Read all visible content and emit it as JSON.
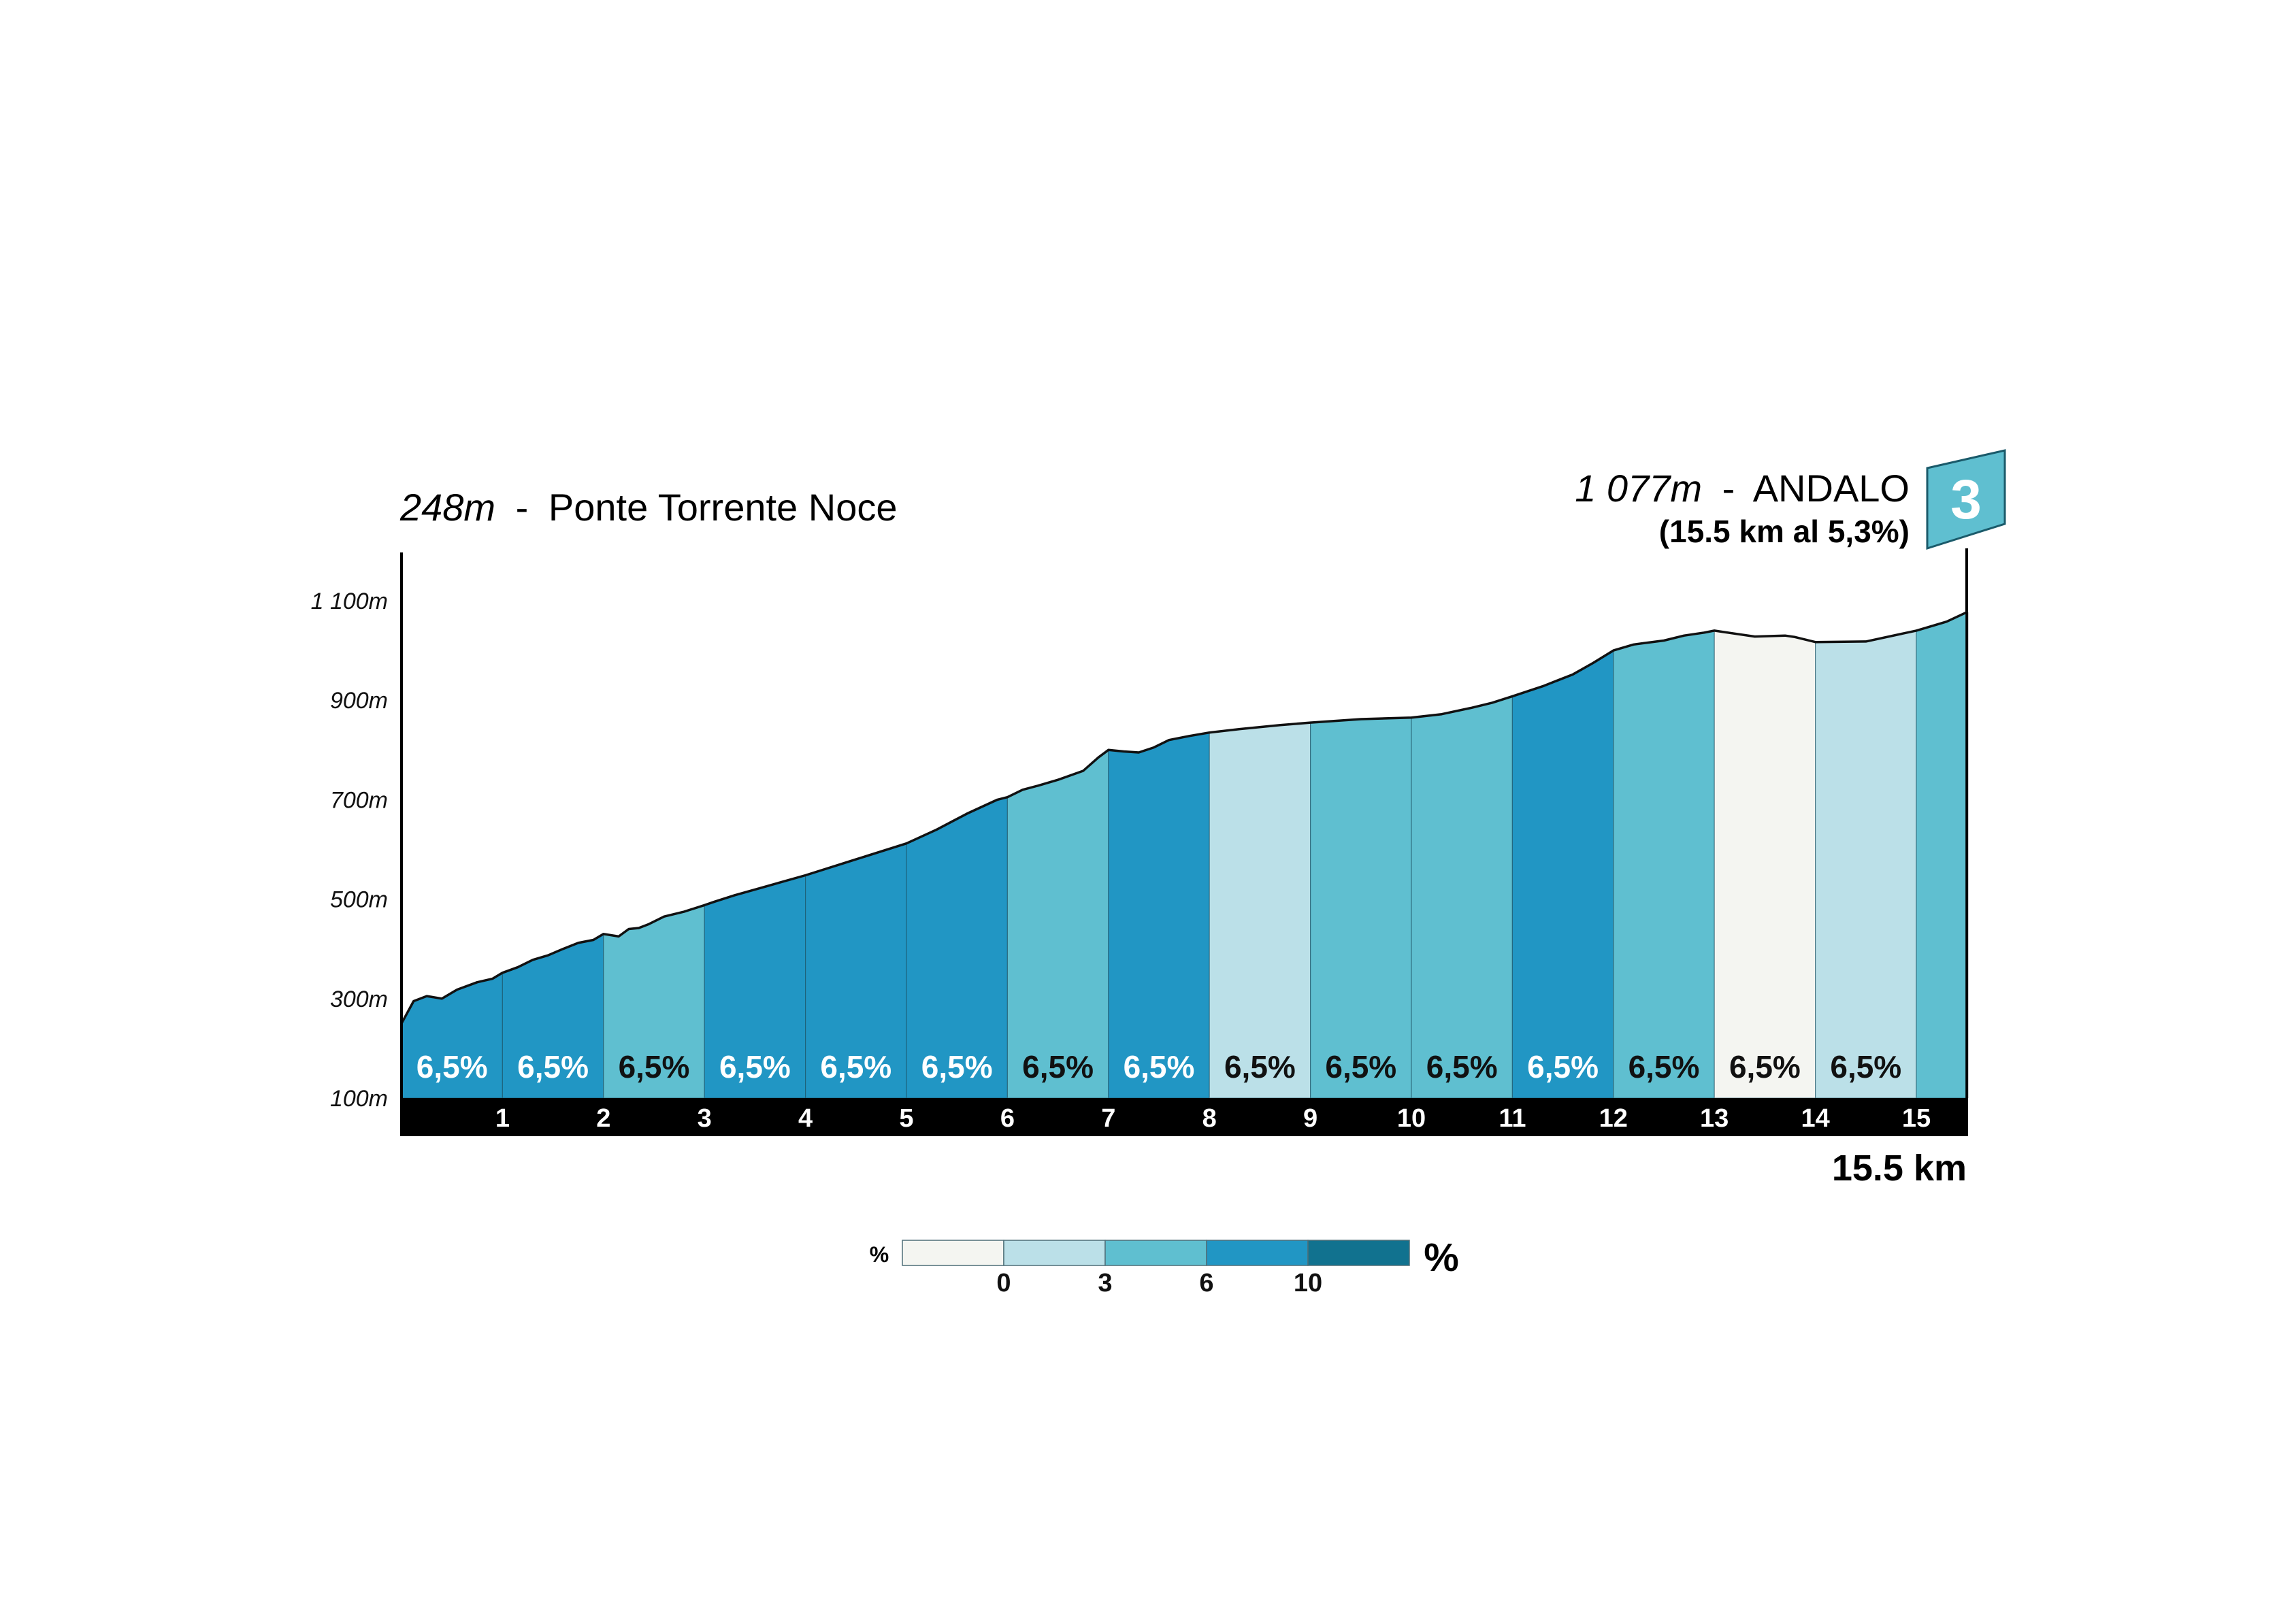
{
  "start": {
    "elevation": "248m",
    "separator": "-",
    "name": "Ponte Torrente Noce"
  },
  "finish": {
    "elevation": "1 077m",
    "separator": "-",
    "name": "ANDALO",
    "summary": "(15.5 km al 5,3%)",
    "category": "3"
  },
  "distance_label": "15.5 km",
  "legend": {
    "left_symbol": "%",
    "right_symbol": "%",
    "ticks": [
      "0",
      "3",
      "6",
      "10"
    ],
    "colors": [
      "#f4f5f1",
      "#bbe0e8",
      "#5fbfd0",
      "#2196c4",
      "#11728f"
    ]
  },
  "colors": {
    "axis": "#000000",
    "profile_outline": "#111111",
    "km_bar": "#000000",
    "flag": "#5fbfd0"
  },
  "chart_data": {
    "type": "area",
    "title": "",
    "xlabel": "15.5 km",
    "ylabel": "",
    "xlim": [
      0,
      15.5
    ],
    "ylim": [
      100,
      1200
    ],
    "y_ticks": [
      {
        "value": 100,
        "label": "100m"
      },
      {
        "value": 300,
        "label": "300m"
      },
      {
        "value": 500,
        "label": "500m"
      },
      {
        "value": 700,
        "label": "700m"
      },
      {
        "value": 900,
        "label": "900m"
      },
      {
        "value": 1100,
        "label": "1 100m"
      }
    ],
    "x_ticks": [
      1,
      2,
      3,
      4,
      5,
      6,
      7,
      8,
      9,
      10,
      11,
      12,
      13,
      14,
      15
    ],
    "profile": {
      "x": [
        0,
        0.12,
        0.25,
        0.4,
        0.55,
        0.75,
        0.9,
        1.0,
        1.15,
        1.3,
        1.45,
        1.6,
        1.75,
        1.9,
        2.0,
        2.15,
        2.25,
        2.35,
        2.45,
        2.6,
        2.8,
        3.0,
        3.1,
        3.3,
        3.6,
        4.0,
        4.5,
        5.0,
        5.3,
        5.6,
        5.9,
        6.0,
        6.15,
        6.3,
        6.5,
        6.75,
        6.9,
        7.0,
        7.15,
        7.3,
        7.45,
        7.6,
        7.8,
        8.0,
        8.3,
        8.7,
        9.0,
        9.5,
        10.0,
        10.3,
        10.6,
        10.8,
        11.0,
        11.3,
        11.6,
        11.8,
        12.0,
        12.2,
        12.5,
        12.7,
        12.9,
        13.0,
        13.1,
        13.4,
        13.7,
        13.8,
        14.0,
        14.5,
        15.0,
        15.3,
        15.5
      ],
      "y": [
        250,
        295,
        305,
        300,
        318,
        333,
        340,
        352,
        363,
        378,
        387,
        400,
        412,
        418,
        430,
        425,
        440,
        442,
        450,
        465,
        475,
        488,
        495,
        508,
        525,
        548,
        580,
        612,
        640,
        672,
        700,
        705,
        720,
        728,
        740,
        758,
        785,
        800,
        797,
        795,
        805,
        820,
        828,
        835,
        842,
        850,
        855,
        862,
        865,
        872,
        885,
        895,
        908,
        928,
        952,
        975,
        1000,
        1012,
        1020,
        1030,
        1036,
        1040,
        1037,
        1028,
        1030,
        1027,
        1017,
        1018,
        1040,
        1058,
        1077
      ]
    },
    "segments": [
      {
        "label": "6,5%",
        "color_class": 3
      },
      {
        "label": "6,5%",
        "color_class": 3
      },
      {
        "label": "6,5%",
        "color_class": 2
      },
      {
        "label": "6,5%",
        "color_class": 3
      },
      {
        "label": "6,5%",
        "color_class": 3
      },
      {
        "label": "6,5%",
        "color_class": 3
      },
      {
        "label": "6,5%",
        "color_class": 2
      },
      {
        "label": "6,5%",
        "color_class": 3
      },
      {
        "label": "6,5%",
        "color_class": 1
      },
      {
        "label": "6,5%",
        "color_class": 2
      },
      {
        "label": "6,5%",
        "color_class": 2
      },
      {
        "label": "6,5%",
        "color_class": 3
      },
      {
        "label": "6,5%",
        "color_class": 2
      },
      {
        "label": "6,5%",
        "color_class": 0
      },
      {
        "label": "6,5%",
        "color_class": 1
      },
      {
        "label": "",
        "color_class": 2
      }
    ]
  }
}
